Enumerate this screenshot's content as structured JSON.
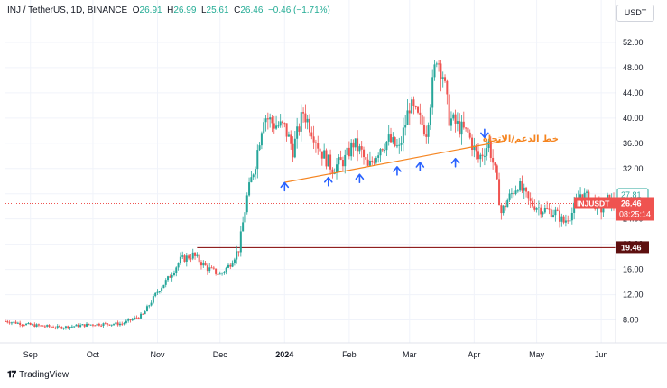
{
  "header": {
    "symbol": "INJ / TetherUS, 1D, BINANCE",
    "o_label": "O",
    "o_value": "26.91",
    "h_label": "H",
    "h_value": "26.99",
    "l_label": "L",
    "l_value": "25.61",
    "c_label": "C",
    "c_value": "26.46",
    "change": "−0.46 (−1.71%)"
  },
  "unit_button": "USDT",
  "brand": "TradingView",
  "colors": {
    "up": "#26a69a",
    "down": "#ef5350",
    "trendline": "#f5841f",
    "support": "#800000",
    "arrow": "#2962ff",
    "current_badge": "#ef5350",
    "support_badge": "#5d0f0f"
  },
  "chart_data": {
    "type": "candlestick",
    "title": "",
    "xlabel": "",
    "ylabel": "",
    "ylim": [
      5.5,
      55
    ],
    "y_ticks": [
      "52.00",
      "48.00",
      "44.00",
      "40.00",
      "36.00",
      "32.00",
      "28.00",
      "24.00",
      "20.00",
      "16.00",
      "12.00",
      "8.00"
    ],
    "y_tick_values": [
      52,
      48,
      44,
      40,
      36,
      32,
      28,
      24,
      20,
      16,
      12,
      8
    ],
    "x_ticks": [
      "Sep",
      "Oct",
      "Nov",
      "Dec",
      "2024",
      "Feb",
      "Mar",
      "Apr",
      "May",
      "Jun"
    ],
    "x_tick_dates": [
      "2023-09-01",
      "2023-10-01",
      "2023-11-01",
      "2023-12-01",
      "2024-01-01",
      "2024-02-01",
      "2024-03-01",
      "2024-04-01",
      "2024-05-01",
      "2024-06-01"
    ],
    "date_range": [
      "2023-08-20",
      "2024-06-07"
    ],
    "price_path": [
      [
        "2023-08-20",
        7.8
      ],
      [
        "2023-09-01",
        7.2
      ],
      [
        "2023-09-15",
        6.8
      ],
      [
        "2023-10-01",
        7.3
      ],
      [
        "2023-10-15",
        7.4
      ],
      [
        "2023-10-25",
        8.8
      ],
      [
        "2023-11-01",
        12.5
      ],
      [
        "2023-11-06",
        14.5
      ],
      [
        "2023-11-12",
        17.5
      ],
      [
        "2023-11-18",
        18.3
      ],
      [
        "2023-11-25",
        16.2
      ],
      [
        "2023-12-01",
        15.2
      ],
      [
        "2023-12-05",
        16.5
      ],
      [
        "2023-12-10",
        19.2
      ],
      [
        "2023-12-14",
        27.5
      ],
      [
        "2023-12-18",
        33.0
      ],
      [
        "2023-12-22",
        40.5
      ],
      [
        "2023-12-27",
        39.0
      ],
      [
        "2024-01-01",
        38.5
      ],
      [
        "2024-01-05",
        35.0
      ],
      [
        "2024-01-10",
        41.0
      ],
      [
        "2024-01-15",
        37.5
      ],
      [
        "2024-01-18",
        35.0
      ],
      [
        "2024-01-24",
        32.0
      ],
      [
        "2024-01-30",
        33.5
      ],
      [
        "2024-02-03",
        36.0
      ],
      [
        "2024-02-07",
        34.5
      ],
      [
        "2024-02-10",
        32.0
      ],
      [
        "2024-02-16",
        35.5
      ],
      [
        "2024-02-20",
        36.5
      ],
      [
        "2024-02-25",
        35.0
      ],
      [
        "2024-03-01",
        42.0
      ],
      [
        "2024-03-05",
        40.0
      ],
      [
        "2024-03-09",
        38.0
      ],
      [
        "2024-03-14",
        50.0
      ],
      [
        "2024-03-17",
        47.0
      ],
      [
        "2024-03-20",
        40.0
      ],
      [
        "2024-03-25",
        38.5
      ],
      [
        "2024-03-29",
        37.5
      ],
      [
        "2024-04-03",
        33.5
      ],
      [
        "2024-04-08",
        36.0
      ],
      [
        "2024-04-11",
        31.5
      ],
      [
        "2024-04-14",
        25.0
      ],
      [
        "2024-04-17",
        27.0
      ],
      [
        "2024-04-22",
        29.5
      ],
      [
        "2024-04-28",
        26.5
      ],
      [
        "2024-05-04",
        25.5
      ],
      [
        "2024-05-10",
        25.0
      ],
      [
        "2024-05-14",
        23.5
      ],
      [
        "2024-05-18",
        25.0
      ],
      [
        "2024-05-22",
        28.0
      ],
      [
        "2024-05-27",
        27.0
      ],
      [
        "2024-06-01",
        25.5
      ],
      [
        "2024-06-04",
        27.0
      ],
      [
        "2024-06-07",
        26.46
      ]
    ],
    "price_lines": {
      "current": {
        "value": 26.46,
        "label": "26.46",
        "countdown": "08:25:14",
        "symbol": "INJUSDT"
      },
      "high_marker": {
        "value": 27.81,
        "label": "27.81"
      },
      "support": {
        "value": 19.46,
        "label": "19.46",
        "from": "2023-11-20"
      }
    },
    "trendline": {
      "points": [
        [
          "2024-01-01",
          29.8
        ],
        [
          "2024-04-05",
          35.5
        ]
      ],
      "label": "خط الدعم/الاتجاه"
    },
    "touch_arrows": [
      {
        "date": "2024-01-01",
        "price": 29.2,
        "dir": "up"
      },
      {
        "date": "2024-01-22",
        "price": 30.0,
        "dir": "up"
      },
      {
        "date": "2024-02-06",
        "price": 30.5,
        "dir": "up"
      },
      {
        "date": "2024-02-24",
        "price": 31.7,
        "dir": "up"
      },
      {
        "date": "2024-03-06",
        "price": 32.4,
        "dir": "up"
      },
      {
        "date": "2024-03-23",
        "price": 33.0,
        "dir": "up"
      },
      {
        "date": "2024-04-06",
        "price": 37.5,
        "dir": "down"
      }
    ]
  }
}
